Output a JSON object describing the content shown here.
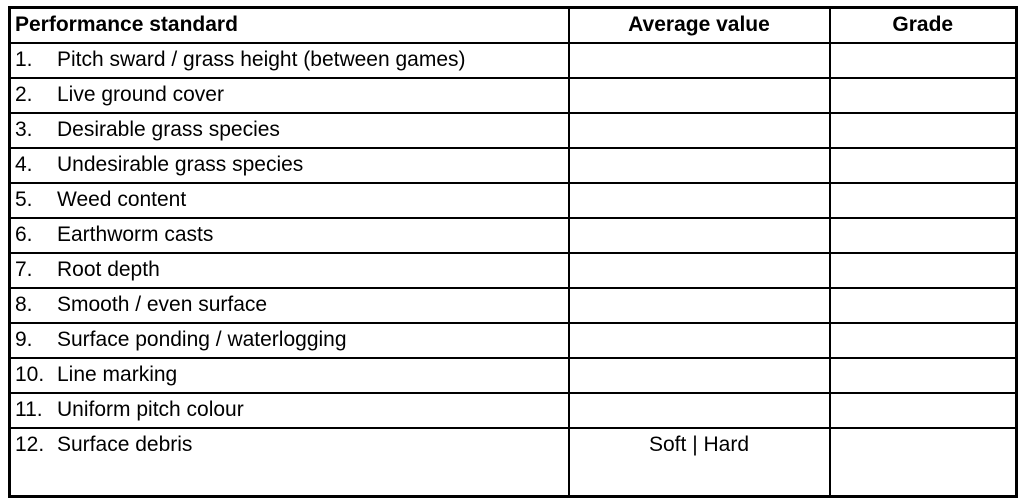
{
  "table": {
    "headers": {
      "standard": "Performance standard",
      "average_value": "Average value",
      "grade": "Grade"
    },
    "rows": [
      {
        "num": "1.",
        "standard": "Pitch sward / grass height (between games)",
        "average_value": "",
        "grade": ""
      },
      {
        "num": "2.",
        "standard": "Live ground cover",
        "average_value": "",
        "grade": ""
      },
      {
        "num": "3.",
        "standard": "Desirable grass species",
        "average_value": "",
        "grade": ""
      },
      {
        "num": "4.",
        "standard": "Undesirable grass species",
        "average_value": "",
        "grade": ""
      },
      {
        "num": "5.",
        "standard": "Weed content",
        "average_value": "",
        "grade": ""
      },
      {
        "num": "6.",
        "standard": "Earthworm casts",
        "average_value": "",
        "grade": ""
      },
      {
        "num": "7.",
        "standard": "Root depth",
        "average_value": "",
        "grade": ""
      },
      {
        "num": "8.",
        "standard": "Smooth / even surface",
        "average_value": "",
        "grade": ""
      },
      {
        "num": "9.",
        "standard": "Surface ponding / waterlogging",
        "average_value": "",
        "grade": ""
      },
      {
        "num": "10.",
        "standard": "Line marking",
        "average_value": "",
        "grade": ""
      },
      {
        "num": "11.",
        "standard": "Uniform pitch colour",
        "average_value": "",
        "grade": ""
      },
      {
        "num": "12.",
        "standard": "Surface debris",
        "average_value": "Soft | Hard",
        "grade": ""
      }
    ],
    "tall_row_index": 11
  },
  "colors": {
    "border": "#000000",
    "text": "#000000",
    "background": "#ffffff"
  }
}
